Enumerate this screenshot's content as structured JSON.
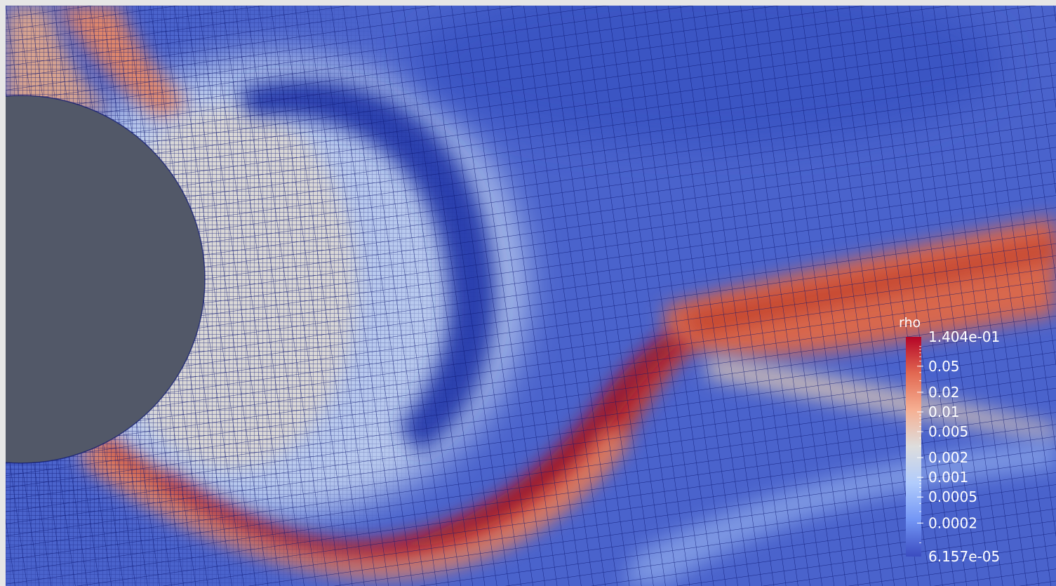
{
  "render_view": {
    "background": "#e6e6e6",
    "body_color": "#525868",
    "mesh_line_color": "#0a1470",
    "colormap": "Cool to Warm",
    "scale": "log"
  },
  "color_legend": {
    "title": "rho",
    "range_max_label": "1.404e-01",
    "range_min_label": "6.157e-05",
    "range": [
      6.157e-05,
      0.1404
    ],
    "ticks": [
      {
        "value": 0.05,
        "label": "0.05"
      },
      {
        "value": 0.02,
        "label": "0.02"
      },
      {
        "value": 0.01,
        "label": "0.01"
      },
      {
        "value": 0.005,
        "label": "0.005"
      },
      {
        "value": 0.002,
        "label": "0.002"
      },
      {
        "value": 0.001,
        "label": "0.001"
      },
      {
        "value": 0.0005,
        "label": "0.0005"
      },
      {
        "value": 0.0002,
        "label": "0.0002"
      }
    ],
    "colors": [
      "#3b4cc0",
      "#7396f5",
      "#b0cbfc",
      "#dddddd",
      "#f6b093",
      "#e26952",
      "#b40426"
    ]
  }
}
